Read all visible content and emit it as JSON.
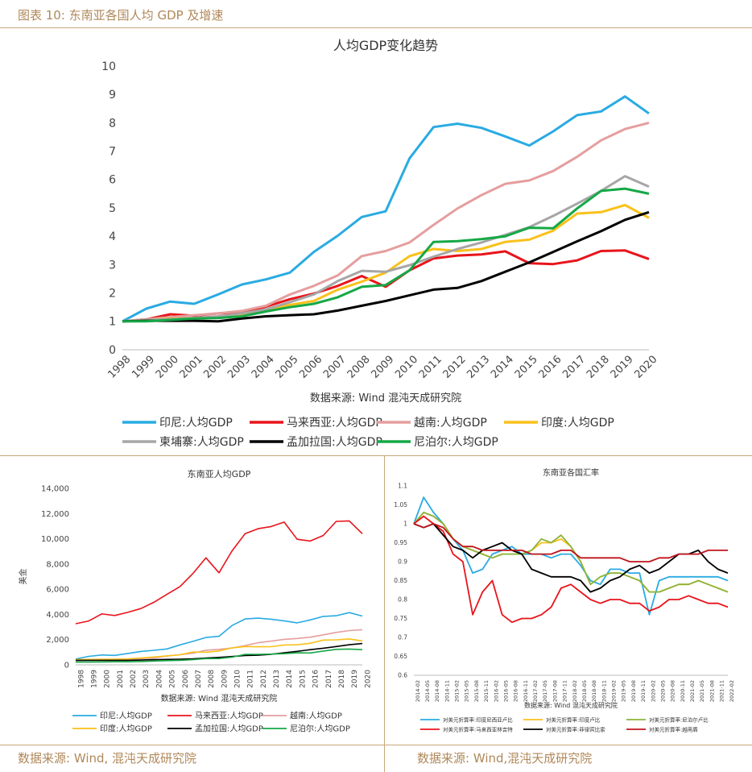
{
  "header": {
    "title": "图表 10: 东南亚各国人均 GDP 及增速"
  },
  "footer": {
    "left": "数据来源: Wind, 混沌天成研究院",
    "right": "数据来源: Wind,混沌天成研究院"
  },
  "chart_data": [
    {
      "type": "line",
      "title": "人均GDP变化趋势",
      "subtitle": "数据来源: Wind 混沌天成研究院",
      "categories": [
        "1998",
        "1999",
        "2000",
        "2001",
        "2002",
        "2003",
        "2004",
        "2005",
        "2006",
        "2007",
        "2008",
        "2009",
        "2010",
        "2011",
        "2012",
        "2013",
        "2014",
        "2015",
        "2016",
        "2017",
        "2018",
        "2019",
        "2020"
      ],
      "ylim": [
        0,
        10
      ],
      "yticks": [
        "0",
        "1",
        "2",
        "3",
        "4",
        "5",
        "6",
        "7",
        "8",
        "9",
        "10"
      ],
      "legend": "bottom",
      "series": [
        {
          "name": "印尼:人均GDP",
          "color": "#29abe2",
          "values": [
            1,
            1.45,
            1.7,
            1.62,
            1.95,
            2.3,
            2.48,
            2.72,
            3.45,
            4.02,
            4.68,
            4.88,
            6.75,
            7.85,
            7.97,
            7.82,
            7.52,
            7.2,
            7.7,
            8.27,
            8.4,
            8.93,
            8.33
          ]
        },
        {
          "name": "马来西亚:人均GDP",
          "color": "#e8141b",
          "values": [
            1,
            1.07,
            1.25,
            1.2,
            1.28,
            1.32,
            1.52,
            1.78,
            1.98,
            2.25,
            2.6,
            2.22,
            2.8,
            3.22,
            3.32,
            3.36,
            3.47,
            3.05,
            3.02,
            3.15,
            3.48,
            3.5,
            3.2
          ]
        },
        {
          "name": "越南:人均GDP",
          "color": "#e59e9e",
          "values": [
            1,
            1.07,
            1.15,
            1.22,
            1.28,
            1.37,
            1.55,
            1.95,
            2.25,
            2.62,
            3.3,
            3.48,
            3.78,
            4.4,
            4.98,
            5.45,
            5.85,
            5.97,
            6.3,
            6.8,
            7.38,
            7.78,
            8.0
          ]
        },
        {
          "name": "印度:人均GDP",
          "color": "#f9c11a",
          "values": [
            1,
            1.05,
            1.1,
            1.12,
            1.15,
            1.25,
            1.42,
            1.58,
            1.72,
            2.12,
            2.4,
            2.72,
            3.3,
            3.55,
            3.48,
            3.55,
            3.8,
            3.88,
            4.2,
            4.8,
            4.85,
            5.1,
            4.65
          ]
        },
        {
          "name": "柬埔寨:人均GDP",
          "color": "#a6a6a6",
          "values": [
            1,
            1.05,
            1.08,
            1.12,
            1.18,
            1.28,
            1.42,
            1.68,
            1.95,
            2.42,
            2.78,
            2.75,
            2.98,
            3.28,
            3.55,
            3.78,
            4.05,
            4.32,
            4.72,
            5.15,
            5.6,
            6.12,
            5.75
          ]
        },
        {
          "name": "孟加拉国:人均GDP",
          "color": "#000000",
          "values": [
            1,
            1.02,
            1.02,
            1.02,
            1.0,
            1.1,
            1.18,
            1.22,
            1.25,
            1.38,
            1.55,
            1.72,
            1.92,
            2.12,
            2.18,
            2.42,
            2.75,
            3.08,
            3.45,
            3.82,
            4.18,
            4.58,
            4.85
          ]
        },
        {
          "name": "尼泊尔:人均GDP",
          "color": "#15a846",
          "values": [
            1,
            1.0,
            1.05,
            1.1,
            1.12,
            1.18,
            1.35,
            1.5,
            1.62,
            1.85,
            2.22,
            2.28,
            2.8,
            3.8,
            3.83,
            3.9,
            4.0,
            4.3,
            4.28,
            4.98,
            5.6,
            5.68,
            5.5
          ]
        }
      ]
    },
    {
      "type": "line",
      "title": "东南亚人均GDP",
      "subtitle": "数据来源: Wind 混沌天成研究院",
      "ylabel": "美金",
      "categories": [
        "1998",
        "1999",
        "2000",
        "2001",
        "2002",
        "2003",
        "2004",
        "2005",
        "2006",
        "2007",
        "2008",
        "2009",
        "2010",
        "2011",
        "2012",
        "2013",
        "2014",
        "2015",
        "2016",
        "2017",
        "2018",
        "2019",
        "2020"
      ],
      "ylim": [
        0,
        14000
      ],
      "yticks": [
        "0",
        "2,000",
        "4,000",
        "6,000",
        "8,000",
        "10,000",
        "12,000",
        "14,000"
      ],
      "legend": "bottom",
      "series": [
        {
          "name": "印尼:人均GDP",
          "color": "#29abe2",
          "values": [
            460,
            670,
            780,
            750,
            900,
            1060,
            1150,
            1260,
            1580,
            1860,
            2170,
            2260,
            3120,
            3640,
            3700,
            3620,
            3490,
            3330,
            3560,
            3840,
            3890,
            4140,
            3870
          ]
        },
        {
          "name": "马来西亚:人均GDP",
          "color": "#e8141b",
          "values": [
            3260,
            3480,
            4040,
            3910,
            4160,
            4460,
            4960,
            5590,
            6210,
            7240,
            8490,
            7300,
            9040,
            10400,
            10800,
            10970,
            11320,
            9960,
            9820,
            10260,
            11380,
            11420,
            10400
          ]
        },
        {
          "name": "越南:人均GDP",
          "color": "#e59e9e",
          "values": [
            360,
            370,
            390,
            410,
            440,
            490,
            550,
            700,
            800,
            920,
            1160,
            1230,
            1330,
            1530,
            1750,
            1880,
            2020,
            2090,
            2190,
            2380,
            2570,
            2720,
            2790
          ]
        },
        {
          "name": "印度:人均GDP",
          "color": "#f9c11a",
          "values": [
            410,
            430,
            440,
            450,
            470,
            540,
            620,
            710,
            800,
            1020,
            1000,
            1100,
            1350,
            1450,
            1430,
            1440,
            1570,
            1590,
            1710,
            1960,
            1980,
            2050,
            1900
          ]
        },
        {
          "name": "孟加拉国:人均GDP",
          "color": "#000000",
          "values": [
            360,
            360,
            360,
            360,
            360,
            380,
            410,
            430,
            450,
            480,
            540,
            590,
            660,
            740,
            760,
            840,
            950,
            1070,
            1200,
            1320,
            1450,
            1590,
            1690
          ]
        },
        {
          "name": "尼泊尔:人均GDP",
          "color": "#15a846",
          "values": [
            220,
            220,
            230,
            240,
            240,
            260,
            300,
            330,
            360,
            410,
            490,
            500,
            610,
            830,
            830,
            850,
            880,
            950,
            940,
            1090,
            1230,
            1250,
            1200
          ]
        }
      ]
    },
    {
      "type": "line",
      "title": "东南亚各国汇率",
      "subtitle": "数据来源: Wind 混沌天成研究院",
      "ylim": [
        0.6,
        1.1
      ],
      "yticks": [
        "0.6",
        "0.65",
        "0.7",
        "0.75",
        "0.8",
        "0.85",
        "0.9",
        "0.95",
        "1",
        "1.05",
        "1.1"
      ],
      "xticks": [
        "2014-02",
        "2014-05",
        "2014-08",
        "2014-11",
        "2015-02",
        "2015-05",
        "2015-08",
        "2015-11",
        "2016-02",
        "2016-05",
        "2016-08",
        "2016-11",
        "2017-02",
        "2017-05",
        "2017-08",
        "2017-11",
        "2018-02",
        "2018-05",
        "2018-08",
        "2018-11",
        "2019-02",
        "2019-05",
        "2019-08",
        "2019-11",
        "2020-02",
        "2020-05",
        "2020-08",
        "2020-11",
        "2021-02",
        "2021-05",
        "2021-08",
        "2021-11",
        "2022-02"
      ],
      "legend": "bottom",
      "series": [
        {
          "name": "对美元折算率:印度尼西亚卢比",
          "color": "#29abe2",
          "values": [
            1,
            1.07,
            1.03,
            1.0,
            0.96,
            0.93,
            0.87,
            0.88,
            0.92,
            0.93,
            0.94,
            0.92,
            0.92,
            0.92,
            0.91,
            0.92,
            0.92,
            0.89,
            0.85,
            0.84,
            0.88,
            0.88,
            0.87,
            0.87,
            0.76,
            0.85,
            0.86,
            0.86,
            0.86,
            0.86,
            0.86,
            0.86,
            0.85
          ]
        },
        {
          "name": "对美元折算率:印度卢比",
          "color": "#f9c11a",
          "values": [
            1,
            1.03,
            1.02,
            1.0,
            0.96,
            0.94,
            0.93,
            0.92,
            0.91,
            0.92,
            0.92,
            0.92,
            0.93,
            0.95,
            0.95,
            0.96,
            0.94,
            0.9,
            0.84,
            0.86,
            0.87,
            0.87,
            0.86,
            0.85,
            0.82,
            0.82,
            0.83,
            0.84,
            0.84,
            0.85,
            0.84,
            0.83,
            0.82
          ]
        },
        {
          "name": "对美元折算率:尼泊尔卢比",
          "color": "#8db33a",
          "values": [
            1,
            1.03,
            1.02,
            1.0,
            0.96,
            0.94,
            0.93,
            0.92,
            0.91,
            0.92,
            0.92,
            0.92,
            0.93,
            0.96,
            0.95,
            0.97,
            0.94,
            0.9,
            0.84,
            0.86,
            0.87,
            0.87,
            0.86,
            0.85,
            0.82,
            0.82,
            0.83,
            0.84,
            0.84,
            0.85,
            0.84,
            0.83,
            0.82
          ]
        },
        {
          "name": "对美元折算率:马来西亚林吉特",
          "color": "#e8141b",
          "values": [
            1,
            1.02,
            1.0,
            0.98,
            0.92,
            0.9,
            0.76,
            0.82,
            0.85,
            0.76,
            0.74,
            0.75,
            0.75,
            0.76,
            0.78,
            0.83,
            0.84,
            0.82,
            0.8,
            0.79,
            0.8,
            0.8,
            0.79,
            0.79,
            0.77,
            0.78,
            0.8,
            0.8,
            0.81,
            0.8,
            0.79,
            0.79,
            0.78
          ]
        },
        {
          "name": "对美元折算率:菲律宾比索",
          "color": "#000000",
          "values": [
            1,
            0.99,
            1.0,
            0.97,
            0.94,
            0.93,
            0.91,
            0.93,
            0.94,
            0.95,
            0.93,
            0.92,
            0.88,
            0.87,
            0.86,
            0.86,
            0.86,
            0.85,
            0.82,
            0.83,
            0.85,
            0.86,
            0.88,
            0.89,
            0.87,
            0.88,
            0.9,
            0.92,
            0.92,
            0.93,
            0.9,
            0.88,
            0.87
          ]
        },
        {
          "name": "对美元折算率:越南盾",
          "color": "#c0141b",
          "values": [
            1,
            0.99,
            1.0,
            0.99,
            0.96,
            0.94,
            0.94,
            0.93,
            0.93,
            0.93,
            0.93,
            0.93,
            0.92,
            0.92,
            0.92,
            0.93,
            0.93,
            0.91,
            0.91,
            0.91,
            0.91,
            0.91,
            0.9,
            0.9,
            0.9,
            0.91,
            0.91,
            0.92,
            0.92,
            0.92,
            0.93,
            0.93,
            0.93
          ]
        }
      ]
    }
  ]
}
